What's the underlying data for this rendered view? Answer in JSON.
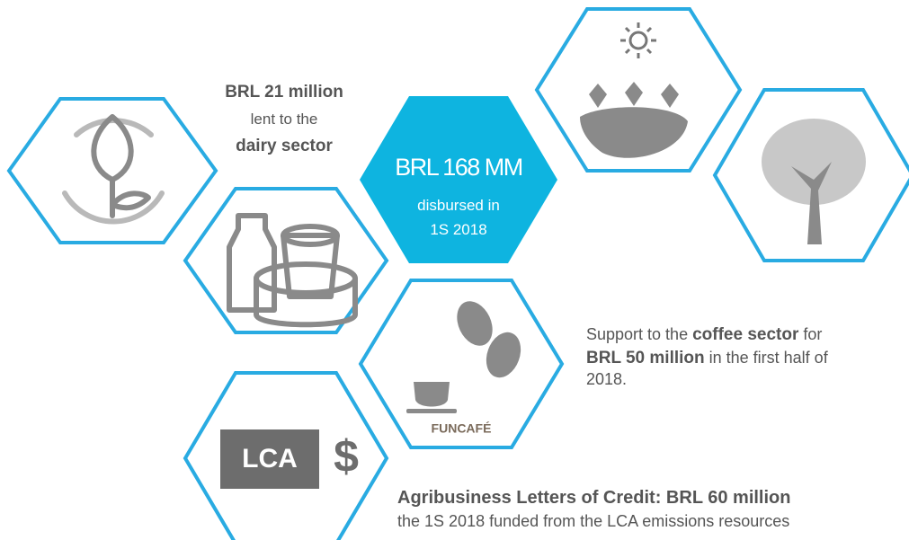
{
  "dairy": {
    "amount": "BRL 21 million",
    "line": "lent to the",
    "sector": "dairy sector"
  },
  "total": {
    "amount": "BRL 168 MM",
    "line1": "disbursed in",
    "line2": "1S 2018"
  },
  "coffee": {
    "pre": "Support to the ",
    "sector": "coffee sector",
    "mid": " for",
    "amount": "BRL 50 million",
    "post": " in the first half of",
    "year": "2018.",
    "logo": "FUNCAFÉ"
  },
  "lca": {
    "badge": "LCA",
    "symbol": "$",
    "headline": "Agribusiness Letters of Credit: BRL 60 million",
    "line": "the 1S 2018 funded from the LCA emissions resources"
  }
}
